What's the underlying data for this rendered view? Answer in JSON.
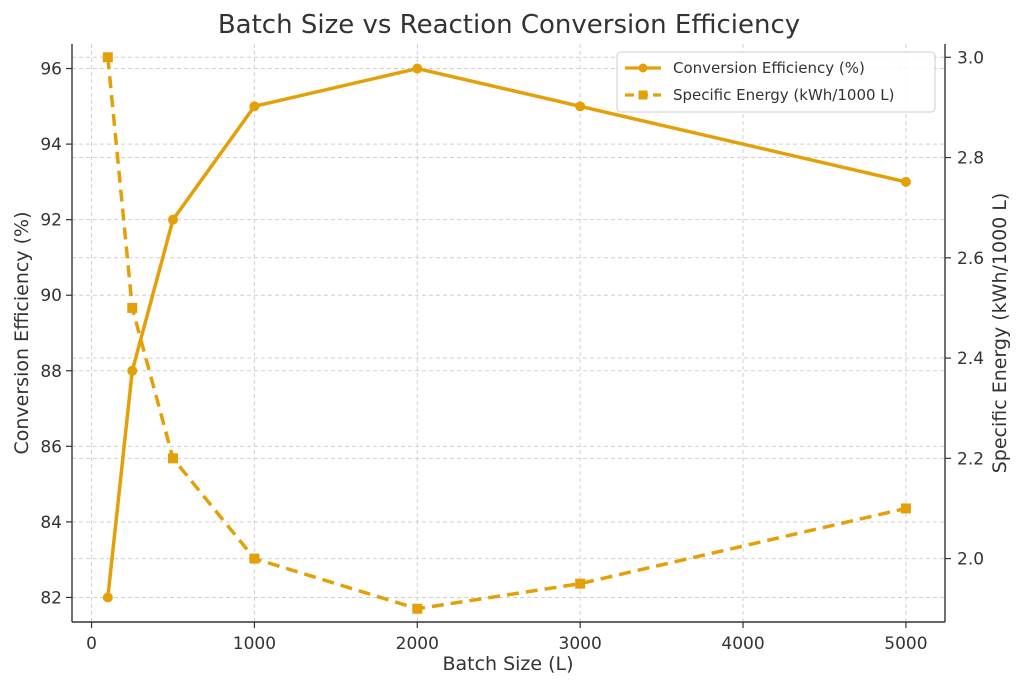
{
  "chart_data": {
    "type": "line",
    "title": "Batch Size vs Reaction Conversion Efficiency",
    "xlabel": "Batch Size (L)",
    "ylabel": "Conversion Efficiency (%)",
    "y2label": "Specific Energy (kWh/1000 L)",
    "x": [
      100,
      250,
      500,
      1000,
      2000,
      3000,
      5000
    ],
    "xlim": [
      -120,
      5240
    ],
    "ylim": [
      81.35,
      96.65
    ],
    "y2lim": [
      1.8735,
      3.0265
    ],
    "xticks": [
      "0",
      "1000",
      "2000",
      "3000",
      "4000",
      "5000"
    ],
    "yticks": [
      "82",
      "84",
      "86",
      "88",
      "90",
      "92",
      "94",
      "96"
    ],
    "y2ticks": [
      "2.0",
      "2.2",
      "2.4",
      "2.6",
      "2.8",
      "3.0"
    ],
    "grid": true,
    "legend_position": "top-right",
    "series": [
      {
        "name": "Conversion Efficiency (%)",
        "axis": "left",
        "style": "solid",
        "marker": "circle",
        "color": "#E3A008",
        "values": [
          82,
          88,
          92,
          95,
          96,
          95,
          93
        ]
      },
      {
        "name": "Specific Energy (kWh/1000 L)",
        "axis": "right",
        "style": "dashed",
        "marker": "square",
        "color": "#E3A008",
        "values": [
          3.0,
          2.5,
          2.2,
          2.0,
          1.9,
          1.95,
          2.1
        ]
      }
    ]
  }
}
